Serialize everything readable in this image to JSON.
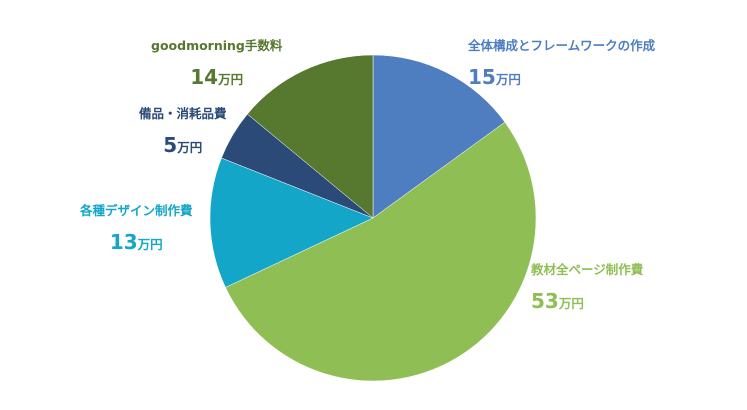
{
  "chart_data": {
    "type": "pie",
    "unit": "万円",
    "slices": [
      {
        "label": "全体構成とフレームワークの作成",
        "value": 15,
        "color": "#4e7ec0"
      },
      {
        "label": "教材全ページ制作費",
        "value": 53,
        "color": "#8fbf54"
      },
      {
        "label": "各種デザイン制作費",
        "value": 13,
        "color": "#13a6c9"
      },
      {
        "label": "備品・消耗品費",
        "value": 5,
        "color": "#2b4a78"
      },
      {
        "label": "goodmorning手数料",
        "value": 14,
        "color": "#56782f"
      }
    ],
    "label_colors": [
      "#4e7ec0",
      "#8fbf54",
      "#13a6c9",
      "#2b4a78",
      "#56782f"
    ]
  }
}
